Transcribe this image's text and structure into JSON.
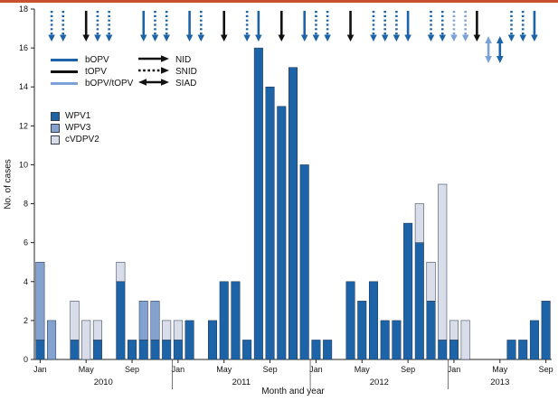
{
  "page": {
    "accent_rule_color": "#c9512e"
  },
  "chart_data": {
    "type": "bar",
    "stacked": true,
    "title": "",
    "xlabel": "Month and year",
    "ylabel": "No. of cases",
    "ylim": [
      0,
      18
    ],
    "ytick_step": 2,
    "grid": false,
    "legend_position": "top-left-inside",
    "years": [
      "2010",
      "2011",
      "2012",
      "2013"
    ],
    "month_tick_labels": [
      "Jan",
      "May",
      "Sep"
    ],
    "categories": [
      "2010-01",
      "2010-02",
      "2010-03",
      "2010-04",
      "2010-05",
      "2010-06",
      "2010-07",
      "2010-08",
      "2010-09",
      "2010-10",
      "2010-11",
      "2010-12",
      "2011-01",
      "2011-02",
      "2011-03",
      "2011-04",
      "2011-05",
      "2011-06",
      "2011-07",
      "2011-08",
      "2011-09",
      "2011-10",
      "2011-11",
      "2011-12",
      "2012-01",
      "2012-02",
      "2012-03",
      "2012-04",
      "2012-05",
      "2012-06",
      "2012-07",
      "2012-08",
      "2012-09",
      "2012-10",
      "2012-11",
      "2012-12",
      "2013-01",
      "2013-02",
      "2013-03",
      "2013-04",
      "2013-05",
      "2013-06",
      "2013-07",
      "2013-08",
      "2013-09"
    ],
    "series": [
      {
        "name": "WPV1",
        "values": [
          1,
          0,
          0,
          1,
          0,
          1,
          0,
          4,
          1,
          1,
          1,
          1,
          1,
          2,
          0,
          2,
          4,
          4,
          1,
          16,
          14,
          13,
          15,
          10,
          1,
          1,
          0,
          4,
          3,
          4,
          2,
          2,
          7,
          6,
          3,
          1,
          1,
          0,
          0,
          0,
          0,
          1,
          1,
          2,
          3
        ]
      },
      {
        "name": "WPV3",
        "values": [
          4,
          2,
          0,
          0,
          0,
          0,
          0,
          0,
          0,
          2,
          2,
          0,
          0,
          0,
          0,
          0,
          0,
          0,
          0,
          0,
          0,
          0,
          0,
          0,
          0,
          0,
          0,
          0,
          0,
          0,
          0,
          0,
          0,
          0,
          0,
          0,
          0,
          0,
          0,
          0,
          0,
          0,
          0,
          0,
          0
        ]
      },
      {
        "name": "cVDPV2",
        "values": [
          0,
          0,
          0,
          2,
          2,
          1,
          0,
          1,
          0,
          0,
          0,
          1,
          1,
          0,
          0,
          0,
          0,
          0,
          0,
          0,
          0,
          0,
          0,
          0,
          0,
          0,
          0,
          0,
          0,
          0,
          0,
          0,
          0,
          2,
          2,
          8,
          1,
          2,
          0,
          0,
          0,
          0,
          0,
          0,
          0
        ]
      }
    ],
    "series_colors": {
      "WPV1": "#1c63a8",
      "WPV3": "#84a2cf",
      "cVDPV2": "#d9dce9"
    },
    "arrow_colors": {
      "bOPV": "#1c63a8",
      "tOPV": "#111111",
      "bOPV_tOPV": "#7ba2d6"
    },
    "campaign_arrows": [
      {
        "month": 1,
        "vaccine": "bOPV",
        "type": "SNID"
      },
      {
        "month": 2,
        "vaccine": "bOPV",
        "type": "SNID"
      },
      {
        "month": 4,
        "vaccine": "tOPV",
        "type": "NID"
      },
      {
        "month": 5,
        "vaccine": "bOPV",
        "type": "SNID"
      },
      {
        "month": 6,
        "vaccine": "bOPV",
        "type": "SNID"
      },
      {
        "month": 9,
        "vaccine": "bOPV",
        "type": "NID"
      },
      {
        "month": 10,
        "vaccine": "bOPV",
        "type": "SNID"
      },
      {
        "month": 11,
        "vaccine": "bOPV",
        "type": "SNID"
      },
      {
        "month": 13,
        "vaccine": "bOPV",
        "type": "NID"
      },
      {
        "month": 14,
        "vaccine": "bOPV",
        "type": "SNID"
      },
      {
        "month": 16,
        "vaccine": "tOPV",
        "type": "NID"
      },
      {
        "month": 18,
        "vaccine": "bOPV",
        "type": "SNID"
      },
      {
        "month": 19,
        "vaccine": "bOPV",
        "type": "NID"
      },
      {
        "month": 21,
        "vaccine": "tOPV",
        "type": "NID"
      },
      {
        "month": 23,
        "vaccine": "bOPV",
        "type": "NID"
      },
      {
        "month": 24,
        "vaccine": "bOPV",
        "type": "SNID"
      },
      {
        "month": 25,
        "vaccine": "bOPV",
        "type": "SNID"
      },
      {
        "month": 27,
        "vaccine": "tOPV",
        "type": "NID"
      },
      {
        "month": 29,
        "vaccine": "bOPV",
        "type": "SNID"
      },
      {
        "month": 30,
        "vaccine": "bOPV",
        "type": "SNID"
      },
      {
        "month": 31,
        "vaccine": "bOPV",
        "type": "SNID"
      },
      {
        "month": 32,
        "vaccine": "bOPV",
        "type": "NID"
      },
      {
        "month": 34,
        "vaccine": "bOPV",
        "type": "SNID"
      },
      {
        "month": 35,
        "vaccine": "bOPV",
        "type": "SNID"
      },
      {
        "month": 36,
        "vaccine": "bOPV_tOPV",
        "type": "SNID"
      },
      {
        "month": 37,
        "vaccine": "bOPV_tOPV",
        "type": "SNID"
      },
      {
        "month": 38,
        "vaccine": "tOPV",
        "type": "NID"
      },
      {
        "month": 39,
        "vaccine": "bOPV_tOPV",
        "type": "SIAD"
      },
      {
        "month": 40,
        "vaccine": "bOPV",
        "type": "SIAD"
      },
      {
        "month": 41,
        "vaccine": "bOPV",
        "type": "SNID"
      },
      {
        "month": 42,
        "vaccine": "bOPV",
        "type": "SNID"
      },
      {
        "month": 43,
        "vaccine": "bOPV",
        "type": "NID"
      }
    ]
  },
  "legend_lines": {
    "items": [
      {
        "label": "bOPV"
      },
      {
        "label": "tOPV"
      },
      {
        "label": "bOPV/tOPV"
      }
    ]
  },
  "legend_arrows": {
    "items": [
      {
        "label": "NID",
        "style": "solid"
      },
      {
        "label": "SNID",
        "style": "dashed"
      },
      {
        "label": "SIAD",
        "style": "double"
      }
    ]
  },
  "legend_boxes": {
    "items": [
      {
        "label": "WPV1"
      },
      {
        "label": "WPV3"
      },
      {
        "label": "cVDPV2"
      }
    ]
  }
}
